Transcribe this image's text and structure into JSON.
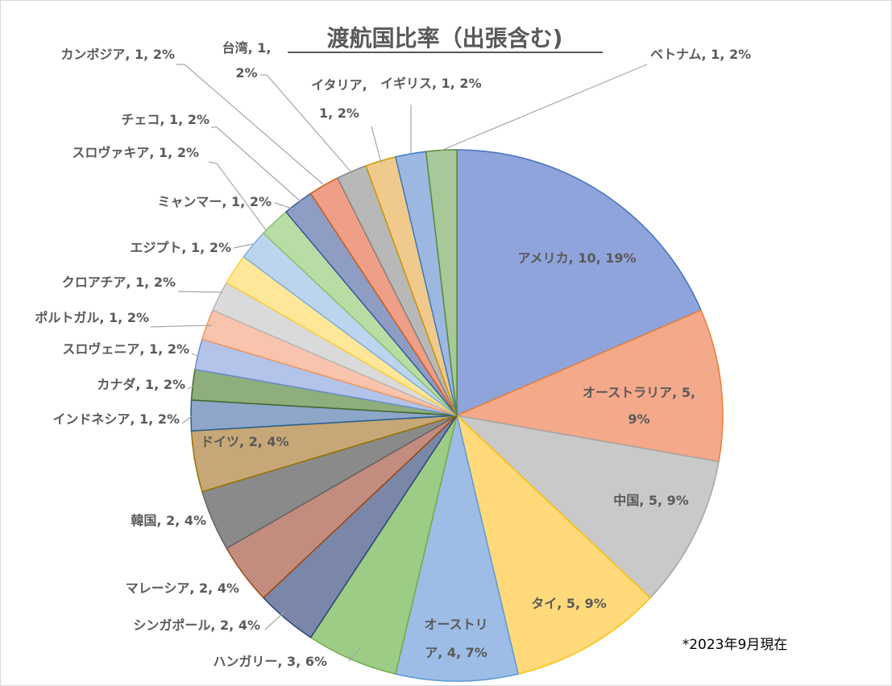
{
  "chart_data": {
    "type": "pie",
    "title": "渡航国比率（出張含む)",
    "note": "*2023年9月現在",
    "slices": [
      {
        "label": "アメリカ",
        "value": 10,
        "percent": "19%",
        "color": "#8fa4da",
        "edge": "#4472c4"
      },
      {
        "label": "オーストラリア",
        "value": 5,
        "percent": "9%",
        "color": "#f4a98a",
        "edge": "#ed7d31"
      },
      {
        "label": "中国",
        "value": 5,
        "percent": "9%",
        "color": "#c9c9c9",
        "edge": "#a5a5a5"
      },
      {
        "label": "タイ",
        "value": 5,
        "percent": "9%",
        "color": "#ffd97a",
        "edge": "#ffc000"
      },
      {
        "label": "オーストリア",
        "value": 4,
        "percent": "7%",
        "color": "#9dbde6",
        "edge": "#5b9bd5"
      },
      {
        "label": "ハンガリー",
        "value": 3,
        "percent": "6%",
        "color": "#9ccc86",
        "edge": "#70ad47"
      },
      {
        "label": "シンガポール",
        "value": 2,
        "percent": "4%",
        "color": "#7b87a8",
        "edge": "#264478"
      },
      {
        "label": "マレーシア",
        "value": 2,
        "percent": "4%",
        "color": "#c28d7f",
        "edge": "#9e480e"
      },
      {
        "label": "韓国",
        "value": 2,
        "percent": "4%",
        "color": "#8a8a8a",
        "edge": "#636363"
      },
      {
        "label": "ドイツ",
        "value": 2,
        "percent": "4%",
        "color": "#c7a777",
        "edge": "#997300"
      },
      {
        "label": "インドネシア",
        "value": 1,
        "percent": "2%",
        "color": "#8ea6c8",
        "edge": "#255e91"
      },
      {
        "label": "カナダ",
        "value": 1,
        "percent": "2%",
        "color": "#8fae7e",
        "edge": "#43682b"
      },
      {
        "label": "スロヴェニア",
        "value": 1,
        "percent": "2%",
        "color": "#b4c3ea",
        "edge": "#698ed0"
      },
      {
        "label": "ポルトガル",
        "value": 1,
        "percent": "2%",
        "color": "#f8c4ad",
        "edge": "#f1975a"
      },
      {
        "label": "クロアチア",
        "value": 1,
        "percent": "2%",
        "color": "#dadada",
        "edge": "#b7b7b7"
      },
      {
        "label": "エジプト",
        "value": 1,
        "percent": "2%",
        "color": "#ffe79a",
        "edge": "#ffcd33"
      },
      {
        "label": "ミャンマー",
        "value": 1,
        "percent": "2%",
        "color": "#bdd4ef",
        "edge": "#7cafdd"
      },
      {
        "label": "スロヴァキア",
        "value": 1,
        "percent": "2%",
        "color": "#b9dca4",
        "edge": "#8cc168"
      },
      {
        "label": "チェコ",
        "value": 1,
        "percent": "2%",
        "color": "#8f9cc4",
        "edge": "#335aa1"
      },
      {
        "label": "カンボジア",
        "value": 1,
        "percent": "2%",
        "color": "#ef9e88",
        "edge": "#d26012"
      },
      {
        "label": "台湾",
        "value": 1,
        "percent": "2%",
        "color": "#b8b8b8",
        "edge": "#848484"
      },
      {
        "label": "イタリア",
        "value": 1,
        "percent": "2%",
        "color": "#f0c98d",
        "edge": "#cc9a00"
      },
      {
        "label": "イギリス",
        "value": 1,
        "percent": "2%",
        "color": "#9cb8e0",
        "edge": "#3b7ac0"
      },
      {
        "label": "ベトナム",
        "value": 1,
        "percent": "2%",
        "color": "#a8c89a",
        "edge": "#5a8a3a"
      }
    ]
  }
}
